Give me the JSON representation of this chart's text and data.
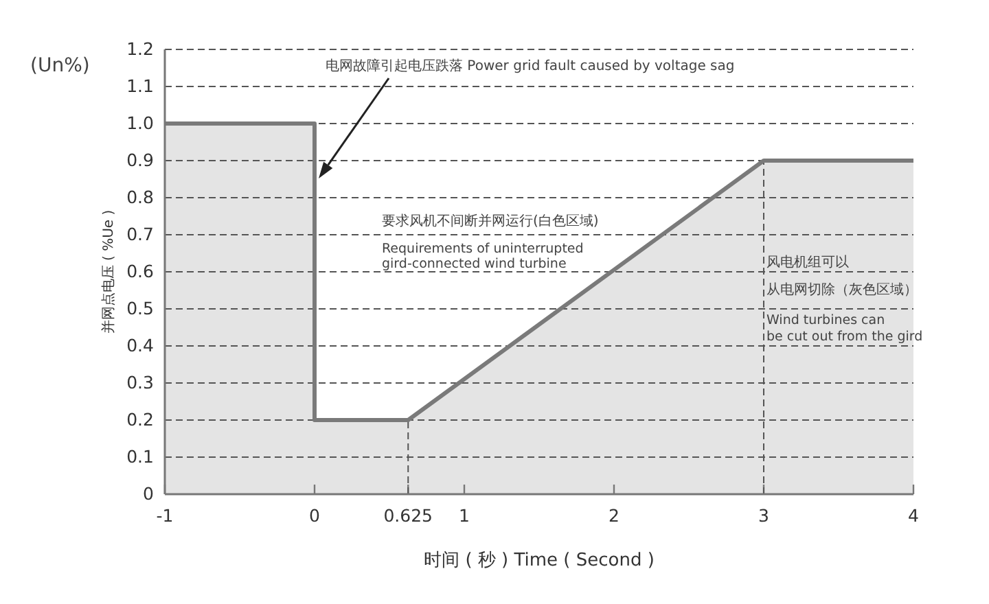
{
  "chart_data": {
    "type": "area",
    "x": [
      -1,
      0,
      0,
      0.625,
      3,
      4
    ],
    "series": [
      {
        "color": "#7a7a7a",
        "values": [
          1,
          1,
          0.2,
          0.2,
          0.9,
          0.9
        ]
      }
    ],
    "xlim": [
      -1,
      4
    ],
    "ylim": [
      0,
      1.2
    ],
    "xticks": [
      -1,
      0,
      0.625,
      1,
      2,
      3,
      4
    ],
    "yticks": [
      0,
      0.1,
      0.2,
      0.3,
      0.4,
      0.5,
      0.6,
      0.7,
      0.8,
      0.9,
      {
        "value": 1,
        "label": "1.0"
      },
      1.1,
      1.2
    ],
    "xlabel": "时间 ( 秒 ) Time ( Second )",
    "ylabel": "并网点电压 ( %Ue )",
    "ref_lines": [
      {
        "axis": "x",
        "value": 0.625,
        "line_style": "dashed",
        "color": "#555555"
      },
      {
        "axis": "x",
        "value": 3,
        "line_style": "dashed",
        "color": "#555555"
      }
    ],
    "annotations": [
      "(Un%)",
      "电网故障引起电压跌落 Power grid fault caused by voltage sag",
      "要求风机不间断并网运行(白色区域)",
      "Requirements of uninterrupted\ngird-connected wind turbine",
      "风电机组可以从电网切除（灰色区域）",
      "Wind turbines can\nbe cut out from the gird"
    ],
    "grid": "y",
    "marker": "none",
    "line_style": "solid"
  }
}
